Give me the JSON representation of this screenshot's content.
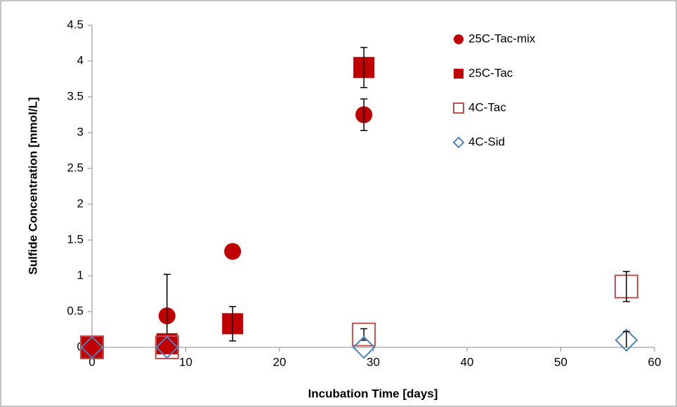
{
  "chart_data": {
    "type": "scatter",
    "x_label": "Incubation Time [days]",
    "y_label": "Sulfide Concentration [mmol/L]",
    "xlim": [
      0,
      60
    ],
    "xticks": [
      0,
      10,
      20,
      30,
      40,
      50,
      60
    ],
    "ylim": [
      0,
      4.5
    ],
    "yticks": [
      0,
      0.5,
      1,
      1.5,
      2,
      2.5,
      3,
      3.5,
      4,
      4.5
    ],
    "grid": false,
    "legend": "top-right",
    "series": [
      {
        "name": "25C-Tac-mix",
        "color": "#c00000",
        "marker": "circle",
        "filled": true,
        "x": [
          0,
          8,
          15,
          29
        ],
        "values": [
          0,
          0.44,
          1.34,
          3.25
        ],
        "errors": [
          null,
          0.58,
          null,
          0.22
        ]
      },
      {
        "name": "25C-Tac",
        "color": "#c00000",
        "marker": "square",
        "filled": true,
        "x": [
          0,
          8,
          15,
          29
        ],
        "values": [
          0,
          0.05,
          0.33,
          3.91
        ],
        "errors": [
          null,
          null,
          0.24,
          0.28
        ]
      },
      {
        "name": "4C-Tac",
        "color": "#c0504d",
        "marker": "square",
        "filled": false,
        "x": [
          0,
          8,
          29,
          57
        ],
        "values": [
          0,
          0,
          0.18,
          0.85
        ],
        "errors": [
          null,
          null,
          0.08,
          0.21
        ]
      },
      {
        "name": "4C-Sid",
        "color": "#4f81bd",
        "marker": "diamond",
        "filled": false,
        "x": [
          0,
          8,
          29,
          57
        ],
        "values": [
          0,
          0,
          0,
          0.1
        ],
        "errors": [
          null,
          null,
          null,
          0.12
        ]
      }
    ]
  }
}
